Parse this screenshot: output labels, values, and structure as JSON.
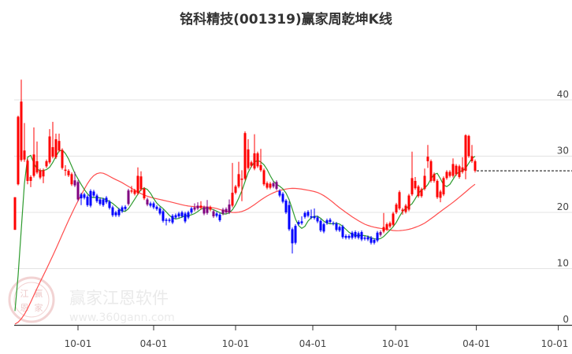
{
  "title": "铭科精技(001319)赢家周乾坤K线",
  "watermark": {
    "name": "赢家江恩软件",
    "url": "www.360gann.com",
    "seal": [
      "江",
      "赢",
      "恩",
      "家"
    ]
  },
  "colors": {
    "up": "#ff0000",
    "down": "#0000ff",
    "neutral": "#800080",
    "short_line": "#2e9b2e",
    "long_line": "#ff4d4d",
    "grid": "#e3e3e3",
    "last_close_line": "#000000"
  },
  "chart_data": {
    "type": "candlestick",
    "title": "铭科精技(001319)赢家周乾坤K线",
    "ylim": [
      0,
      42
    ],
    "y_ticks": [
      0,
      10,
      20,
      30,
      40
    ],
    "y_axis_side": "right",
    "grid": true,
    "last_close": 27.4,
    "x_ticks": [
      {
        "label": "10-01",
        "candle": 20
      },
      {
        "label": "04-01",
        "candle": 44
      },
      {
        "label": "10-01",
        "candle": 70
      },
      {
        "label": "04-01",
        "candle": 94.5
      },
      {
        "label": "10-01",
        "candle": 120.8
      },
      {
        "label": "04-01",
        "candle": 146.4
      },
      {
        "label": "10-01",
        "candle": 172.4
      }
    ],
    "candle_columns": [
      "body_top",
      "body_bottom",
      "high",
      "low",
      "color"
    ],
    "candles": [
      [
        22.7,
        16.9,
        22.7,
        16.9,
        "r"
      ],
      [
        37.0,
        25.0,
        37.2,
        24.8,
        "r"
      ],
      [
        39.7,
        29.3,
        43.6,
        29.0,
        "r"
      ],
      [
        31.0,
        29.4,
        35.9,
        29.0,
        "r"
      ],
      [
        29.2,
        25.6,
        29.5,
        25.0,
        "r"
      ],
      [
        26.3,
        25.6,
        26.6,
        24.5,
        "r"
      ],
      [
        30.3,
        26.5,
        35.1,
        26.2,
        "r"
      ],
      [
        29.1,
        27.1,
        32.6,
        26.8,
        "r"
      ],
      [
        27.5,
        26.2,
        27.8,
        25.9,
        "r"
      ],
      [
        27.5,
        26.4,
        27.8,
        25.2,
        "r"
      ],
      [
        29.1,
        28.2,
        29.4,
        27.9,
        "r"
      ],
      [
        33.5,
        28.9,
        34.8,
        28.6,
        "r"
      ],
      [
        31.6,
        29.9,
        36.1,
        29.6,
        "r"
      ],
      [
        33.0,
        29.8,
        34.0,
        29.5,
        "r"
      ],
      [
        32.7,
        31.0,
        34.0,
        30.7,
        "r"
      ],
      [
        31.1,
        27.9,
        31.4,
        27.6,
        "r"
      ],
      [
        27.6,
        27.4,
        28.4,
        26.5,
        "r"
      ],
      [
        27.4,
        26.6,
        27.7,
        26.3,
        "r"
      ],
      [
        26.8,
        25.0,
        27.1,
        24.7,
        "r"
      ],
      [
        25.7,
        24.8,
        27.2,
        24.5,
        "p"
      ],
      [
        25.4,
        22.3,
        25.7,
        22.0,
        "p"
      ],
      [
        23.2,
        22.5,
        23.5,
        21.3,
        "b"
      ],
      [
        23.2,
        22.6,
        23.5,
        22.3,
        "b"
      ],
      [
        22.8,
        21.3,
        23.1,
        21.0,
        "b"
      ],
      [
        23.8,
        21.2,
        24.1,
        20.9,
        "b"
      ],
      [
        23.7,
        23.0,
        24.0,
        22.7,
        "b"
      ],
      [
        23.0,
        22.0,
        23.3,
        21.7,
        "b"
      ],
      [
        22.3,
        21.5,
        22.6,
        21.2,
        "b"
      ],
      [
        22.3,
        21.3,
        22.6,
        21.0,
        "b"
      ],
      [
        22.6,
        21.8,
        22.9,
        21.5,
        "b"
      ],
      [
        21.9,
        20.8,
        22.2,
        20.5,
        "b"
      ],
      [
        20.9,
        19.5,
        21.2,
        19.2,
        "b"
      ],
      [
        20.0,
        19.5,
        20.3,
        19.2,
        "b"
      ],
      [
        20.5,
        19.5,
        20.8,
        19.2,
        "b"
      ],
      [
        20.9,
        20.2,
        21.2,
        19.9,
        "b"
      ],
      [
        21.0,
        20.6,
        21.3,
        20.3,
        "b"
      ],
      [
        23.9,
        21.5,
        24.2,
        21.2,
        "p"
      ],
      [
        23.9,
        23.7,
        24.7,
        23.4,
        "r"
      ],
      [
        23.9,
        23.3,
        24.2,
        23.0,
        "r"
      ],
      [
        26.5,
        23.4,
        28.0,
        23.1,
        "r"
      ],
      [
        26.4,
        24.1,
        27.3,
        23.8,
        "r"
      ],
      [
        24.2,
        22.5,
        24.5,
        22.2,
        "r"
      ],
      [
        22.3,
        21.4,
        22.6,
        21.1,
        "p"
      ],
      [
        21.6,
        21.2,
        21.9,
        20.9,
        "b"
      ],
      [
        21.6,
        20.9,
        21.9,
        20.6,
        "b"
      ],
      [
        21.0,
        20.6,
        21.3,
        20.3,
        "b"
      ],
      [
        20.7,
        19.8,
        21.0,
        19.5,
        "b"
      ],
      [
        20.2,
        18.5,
        20.5,
        18.2,
        "b"
      ],
      [
        18.7,
        18.5,
        19.0,
        17.7,
        "b"
      ],
      [
        18.7,
        18.5,
        19.0,
        18.2,
        "b"
      ],
      [
        19.4,
        18.2,
        19.7,
        17.9,
        "b"
      ],
      [
        19.5,
        19.1,
        19.8,
        18.8,
        "b"
      ],
      [
        19.8,
        19.3,
        20.1,
        19.0,
        "b"
      ],
      [
        20.0,
        19.3,
        20.3,
        19.0,
        "b"
      ],
      [
        19.8,
        18.4,
        20.1,
        18.1,
        "b"
      ],
      [
        20.0,
        19.1,
        20.3,
        18.8,
        "b"
      ],
      [
        20.7,
        20.0,
        21.0,
        19.7,
        "b"
      ],
      [
        20.9,
        20.5,
        21.6,
        20.2,
        "p"
      ],
      [
        21.2,
        20.7,
        21.8,
        20.4,
        "p"
      ],
      [
        21.2,
        20.8,
        22.0,
        20.5,
        "r"
      ],
      [
        20.9,
        19.8,
        21.2,
        19.5,
        "p"
      ],
      [
        21.0,
        19.9,
        22.2,
        19.6,
        "p"
      ],
      [
        20.9,
        20.5,
        21.2,
        20.2,
        "r"
      ],
      [
        20.2,
        19.3,
        20.5,
        19.0,
        "p"
      ],
      [
        19.8,
        19.4,
        20.1,
        19.1,
        "b"
      ],
      [
        19.6,
        18.6,
        19.9,
        18.3,
        "b"
      ],
      [
        20.5,
        19.8,
        20.8,
        19.5,
        "p"
      ],
      [
        20.6,
        20.0,
        20.9,
        19.7,
        "p"
      ],
      [
        21.4,
        20.0,
        22.3,
        19.7,
        "p"
      ],
      [
        23.5,
        21.2,
        28.8,
        20.9,
        "r"
      ],
      [
        24.6,
        23.5,
        24.9,
        23.2,
        "r"
      ],
      [
        26.8,
        24.6,
        29.0,
        24.3,
        "r"
      ],
      [
        26.0,
        25.8,
        27.5,
        22.0,
        "r"
      ],
      [
        34.1,
        26.0,
        34.4,
        25.7,
        "r"
      ],
      [
        31.2,
        27.9,
        33.0,
        27.6,
        "r"
      ],
      [
        28.9,
        28.3,
        29.2,
        28.0,
        "r"
      ],
      [
        30.5,
        27.8,
        33.9,
        27.5,
        "r"
      ],
      [
        30.5,
        28.2,
        30.8,
        27.9,
        "r"
      ],
      [
        28.4,
        27.5,
        31.3,
        27.2,
        "r"
      ],
      [
        27.5,
        25.0,
        27.8,
        24.7,
        "r"
      ],
      [
        25.2,
        24.4,
        25.5,
        24.1,
        "r"
      ],
      [
        25.1,
        24.4,
        25.4,
        24.1,
        "r"
      ],
      [
        25.2,
        24.6,
        25.5,
        24.3,
        "p"
      ],
      [
        25.4,
        24.2,
        25.7,
        23.9,
        "p"
      ],
      [
        23.8,
        23.0,
        24.1,
        22.7,
        "b"
      ],
      [
        23.3,
        21.9,
        23.6,
        21.6,
        "b"
      ],
      [
        22.1,
        20.0,
        22.4,
        19.7,
        "b"
      ],
      [
        21.3,
        17.0,
        22.0,
        16.7,
        "b"
      ],
      [
        17.0,
        14.5,
        17.3,
        12.7,
        "b"
      ],
      [
        17.6,
        14.6,
        17.9,
        14.3,
        "b"
      ],
      [
        18.3,
        17.9,
        18.6,
        17.6,
        "b"
      ],
      [
        18.4,
        18.1,
        19.3,
        17.8,
        "b"
      ],
      [
        19.9,
        19.2,
        20.2,
        18.9,
        "b"
      ],
      [
        20.1,
        19.4,
        20.4,
        19.1,
        "b"
      ],
      [
        19.3,
        19.1,
        20.5,
        18.8,
        "b"
      ],
      [
        19.3,
        19.0,
        20.7,
        18.7,
        "b"
      ],
      [
        19.1,
        18.4,
        19.4,
        18.1,
        "b"
      ],
      [
        18.5,
        16.8,
        18.8,
        16.5,
        "b"
      ],
      [
        17.9,
        16.6,
        18.2,
        16.3,
        "b"
      ],
      [
        18.6,
        18.1,
        18.9,
        17.8,
        "b"
      ],
      [
        18.7,
        18.3,
        19.0,
        18.0,
        "b"
      ],
      [
        18.1,
        18.0,
        18.4,
        17.7,
        "b"
      ],
      [
        18.0,
        16.9,
        18.3,
        16.6,
        "b"
      ],
      [
        17.4,
        16.8,
        17.7,
        16.5,
        "b"
      ],
      [
        17.5,
        15.6,
        17.8,
        15.3,
        "b"
      ],
      [
        15.8,
        15.5,
        16.1,
        15.2,
        "b"
      ],
      [
        15.8,
        15.5,
        16.1,
        15.2,
        "b"
      ],
      [
        16.4,
        15.5,
        16.7,
        15.2,
        "b"
      ],
      [
        16.5,
        15.6,
        16.8,
        15.3,
        "b"
      ],
      [
        16.3,
        15.5,
        16.6,
        15.2,
        "b"
      ],
      [
        16.5,
        15.2,
        16.8,
        14.9,
        "b"
      ],
      [
        15.5,
        15.3,
        15.8,
        15.0,
        "b"
      ],
      [
        15.6,
        15.2,
        15.9,
        14.9,
        "b"
      ],
      [
        15.5,
        14.6,
        15.8,
        14.3,
        "b"
      ],
      [
        15.1,
        14.6,
        15.4,
        14.3,
        "b"
      ],
      [
        16.4,
        15.0,
        16.7,
        14.7,
        "b"
      ],
      [
        16.5,
        16.0,
        16.8,
        15.7,
        "p"
      ],
      [
        17.4,
        16.6,
        19.9,
        16.3,
        "r"
      ],
      [
        17.9,
        17.0,
        18.2,
        16.7,
        "r"
      ],
      [
        18.1,
        17.5,
        18.4,
        17.2,
        "r"
      ],
      [
        19.8,
        17.8,
        20.1,
        17.5,
        "r"
      ],
      [
        21.4,
        20.0,
        21.7,
        19.7,
        "r"
      ],
      [
        23.6,
        20.7,
        23.9,
        20.4,
        "r"
      ],
      [
        20.5,
        20.2,
        20.8,
        19.6,
        "r"
      ],
      [
        21.2,
        20.1,
        21.5,
        19.8,
        "r"
      ],
      [
        23.0,
        20.5,
        23.3,
        20.2,
        "r"
      ],
      [
        26.1,
        23.2,
        30.8,
        22.9,
        "r"
      ],
      [
        25.6,
        24.3,
        26.3,
        24.0,
        "r"
      ],
      [
        24.6,
        22.9,
        24.9,
        22.6,
        "r"
      ],
      [
        24.1,
        22.9,
        24.4,
        22.6,
        "r"
      ],
      [
        26.5,
        24.2,
        27.8,
        23.9,
        "r"
      ],
      [
        29.9,
        29.1,
        32.0,
        27.9,
        "r"
      ],
      [
        29.1,
        25.6,
        29.4,
        25.3,
        "r"
      ],
      [
        26.8,
        25.6,
        27.1,
        25.3,
        "r"
      ],
      [
        25.6,
        22.7,
        25.9,
        22.4,
        "r"
      ],
      [
        23.7,
        22.6,
        24.0,
        21.8,
        "r"
      ],
      [
        26.1,
        23.2,
        26.4,
        22.9,
        "r"
      ],
      [
        27.2,
        26.1,
        27.5,
        25.8,
        "r"
      ],
      [
        27.2,
        26.5,
        27.5,
        26.2,
        "r"
      ],
      [
        28.6,
        26.5,
        29.6,
        26.2,
        "r"
      ],
      [
        28.3,
        26.8,
        28.6,
        26.5,
        "r"
      ],
      [
        28.2,
        26.3,
        28.5,
        26.0,
        "r"
      ],
      [
        28.0,
        27.2,
        29.8,
        26.9,
        "r"
      ],
      [
        33.7,
        27.4,
        33.9,
        25.9,
        "r"
      ],
      [
        33.6,
        30.0,
        33.8,
        29.7,
        "r"
      ],
      [
        30.0,
        29.1,
        32.0,
        28.8,
        "r"
      ],
      [
        29.1,
        27.4,
        29.4,
        27.1,
        "r"
      ]
    ]
  }
}
